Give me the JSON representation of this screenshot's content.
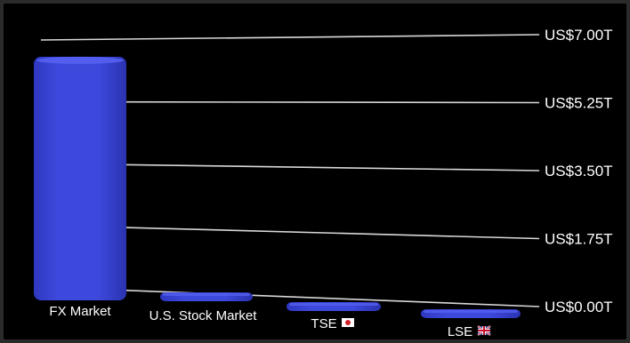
{
  "chart_data": {
    "type": "bar",
    "title": "",
    "xlabel": "",
    "ylabel": "",
    "categories": [
      "FX Market",
      "U.S. Stock Market",
      "TSE",
      "LSE"
    ],
    "category_flags": [
      "",
      "",
      "japan-flag-icon",
      "uk-flag-icon"
    ],
    "values": [
      6.6,
      0.1,
      0.0,
      0.0
    ],
    "ylim": [
      0,
      7.0
    ],
    "yticks": [
      0,
      1.75,
      3.5,
      5.25,
      7.0
    ],
    "ytick_labels": [
      "US$0.00T",
      "US$1.75T",
      "US$3.50T",
      "US$5.25T",
      "US$7.00T"
    ],
    "grid": true,
    "bar_color": "#3a44d8",
    "bar_highlight_color": "#5660f0",
    "grid_color": "#d8d8d8",
    "background": "#000000",
    "text_color": "#ffffff"
  }
}
